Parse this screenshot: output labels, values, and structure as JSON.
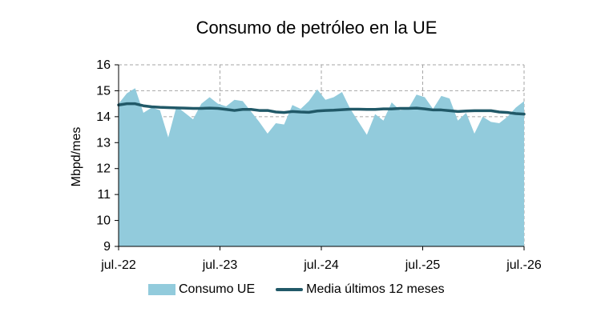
{
  "colors": {
    "area": "#92cbdc",
    "line": "#215968",
    "grid": "#a6a6a6",
    "axis": "#000000"
  },
  "chart_data": {
    "type": "area",
    "title": "Consumo de petróleo en la UE",
    "ylabel": "Mbpd/mes",
    "xlabel": "",
    "ylim": [
      9,
      16
    ],
    "yticks": [
      9,
      10,
      11,
      12,
      13,
      14,
      15,
      16
    ],
    "x_start": "jul.-22",
    "x_end": "jul.-26",
    "x_ticks": [
      "jul.-22",
      "jul.-23",
      "jul.-24",
      "jul.-25",
      "jul.-26"
    ],
    "grid": true,
    "legend_position": "bottom",
    "series": [
      {
        "name": "Consumo UE",
        "kind": "area",
        "values": [
          14.5,
          14.9,
          15.1,
          14.15,
          14.35,
          14.25,
          13.2,
          14.4,
          14.15,
          13.9,
          14.5,
          14.75,
          14.5,
          14.4,
          14.65,
          14.6,
          14.2,
          13.8,
          13.35,
          13.75,
          13.7,
          14.45,
          14.3,
          14.6,
          15.05,
          14.65,
          14.75,
          14.95,
          14.3,
          13.8,
          13.3,
          14.1,
          13.85,
          14.55,
          14.25,
          14.3,
          14.85,
          14.75,
          14.3,
          14.8,
          14.7,
          13.85,
          14.15,
          13.35,
          14.0,
          13.8,
          13.75,
          14.0,
          14.35,
          14.6
        ]
      },
      {
        "name": "Media últimos 12 meses",
        "kind": "line",
        "values": [
          14.45,
          14.5,
          14.5,
          14.42,
          14.38,
          14.36,
          14.35,
          14.34,
          14.33,
          14.32,
          14.32,
          14.33,
          14.32,
          14.28,
          14.24,
          14.28,
          14.28,
          14.24,
          14.24,
          14.18,
          14.16,
          14.2,
          14.18,
          14.17,
          14.22,
          14.24,
          14.25,
          14.27,
          14.29,
          14.29,
          14.28,
          14.28,
          14.3,
          14.3,
          14.32,
          14.32,
          14.33,
          14.3,
          14.26,
          14.26,
          14.23,
          14.2,
          14.22,
          14.23,
          14.23,
          14.23,
          14.18,
          14.16,
          14.12,
          14.1
        ]
      }
    ]
  }
}
